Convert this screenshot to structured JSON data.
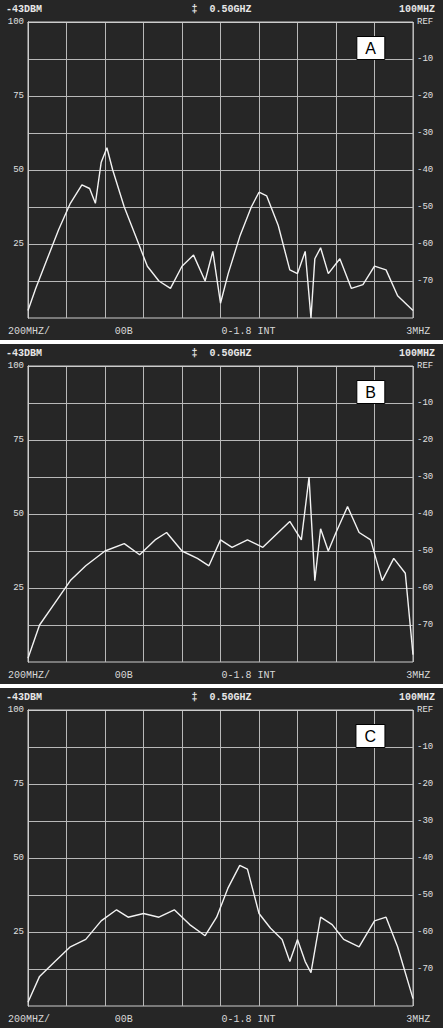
{
  "chart_data": [
    {
      "type": "line",
      "title": "A",
      "header": [
        "-43DBM",
        "‡",
        "0.50GHZ",
        "100MHZ"
      ],
      "footer": [
        "200MHZ/",
        "00B",
        "0-1.8 INT",
        "3MHZ"
      ],
      "x": [
        0,
        0.2,
        0.5,
        0.8,
        1.1,
        1.4,
        1.6,
        1.75,
        1.9,
        2.05,
        2.2,
        2.5,
        2.8,
        3.1,
        3.4,
        3.7,
        4.0,
        4.3,
        4.6,
        4.8,
        5.0,
        5.2,
        5.5,
        5.8,
        6.0,
        6.2,
        6.5,
        6.8,
        7.0,
        7.2,
        7.35,
        7.45,
        7.6,
        7.8,
        8.1,
        8.4,
        8.7,
        9.0,
        9.3,
        9.6,
        10
      ],
      "values": [
        -78,
        -72,
        -64,
        -56,
        -49,
        -44,
        -45,
        -49,
        -38,
        -34,
        -40,
        -50,
        -58,
        -66,
        -70,
        -72,
        -66,
        -63,
        -70,
        -62,
        -76,
        -68,
        -58,
        -50,
        -46,
        -47,
        -55,
        -67,
        -68,
        -62,
        -80,
        -64,
        -61,
        -68,
        -64,
        -72,
        -71,
        -66,
        -67,
        -74,
        -78
      ],
      "color": "#f2f2f2",
      "xlim": [
        0,
        10
      ],
      "xticks": [
        0,
        1,
        2,
        3,
        4,
        5,
        6,
        7,
        8,
        9,
        10
      ],
      "ylim": [
        -80,
        0
      ],
      "yticks": [
        {
          "value": 0,
          "label": "REF"
        },
        -10,
        -20,
        -30,
        -40,
        -50,
        -60,
        -70
      ],
      "y2lim": [
        0,
        100
      ],
      "y2ticks": [
        25,
        50,
        75,
        100
      ],
      "grid": true,
      "tick_labels": "y"
    },
    {
      "type": "line",
      "title": "B",
      "header": [
        "-43DBM",
        "‡",
        "0.50GHZ",
        "100MHZ"
      ],
      "footer": [
        "200MHZ/",
        "00B",
        "0-1.8 INT",
        "3MHZ"
      ],
      "x": [
        0,
        0.3,
        0.7,
        1.1,
        1.5,
        2.0,
        2.5,
        2.9,
        3.3,
        3.6,
        4.0,
        4.4,
        4.7,
        5.0,
        5.3,
        5.7,
        6.1,
        6.5,
        6.8,
        7.1,
        7.3,
        7.45,
        7.6,
        7.8,
        8.0,
        8.3,
        8.6,
        8.9,
        9.2,
        9.5,
        9.8,
        10
      ],
      "values": [
        -79,
        -70,
        -64,
        -58,
        -54,
        -50,
        -48,
        -51,
        -47,
        -45,
        -50,
        -52,
        -54,
        -47,
        -49,
        -47,
        -49,
        -45,
        -42,
        -47,
        -30,
        -58,
        -44,
        -50,
        -45,
        -38,
        -45,
        -47,
        -58,
        -52,
        -56,
        -78
      ],
      "color": "#f2f2f2",
      "xlim": [
        0,
        10
      ],
      "xticks": [
        0,
        1,
        2,
        3,
        4,
        5,
        6,
        7,
        8,
        9,
        10
      ],
      "ylim": [
        -80,
        0
      ],
      "yticks": [
        {
          "value": 0,
          "label": "REF"
        },
        -10,
        -20,
        -30,
        -40,
        -50,
        -60,
        -70
      ],
      "y2lim": [
        0,
        100
      ],
      "y2ticks": [
        25,
        50,
        75,
        100
      ],
      "grid": true,
      "tick_labels": "y"
    },
    {
      "type": "line",
      "title": "C",
      "header": [
        "-43DBM",
        "‡",
        "0.50GHZ",
        "100MHZ"
      ],
      "footer": [
        "200MHZ/",
        "00B",
        "0-1.8 INT",
        "3MHZ"
      ],
      "x": [
        0,
        0.3,
        0.7,
        1.1,
        1.5,
        1.9,
        2.3,
        2.6,
        3.0,
        3.4,
        3.8,
        4.2,
        4.6,
        4.9,
        5.2,
        5.5,
        5.7,
        6.0,
        6.3,
        6.6,
        6.8,
        7.0,
        7.2,
        7.35,
        7.6,
        7.9,
        8.2,
        8.6,
        9.0,
        9.3,
        9.6,
        10
      ],
      "values": [
        -79,
        -72,
        -68,
        -64,
        -62,
        -57,
        -54,
        -56,
        -55,
        -56,
        -54,
        -58,
        -61,
        -56,
        -48,
        -42,
        -43,
        -55,
        -59,
        -62,
        -68,
        -62,
        -68,
        -71,
        -56,
        -58,
        -62,
        -64,
        -57,
        -56,
        -64,
        -78
      ],
      "color": "#f2f2f2",
      "xlim": [
        0,
        10
      ],
      "xticks": [
        0,
        1,
        2,
        3,
        4,
        5,
        6,
        7,
        8,
        9,
        10
      ],
      "ylim": [
        -80,
        0
      ],
      "yticks": [
        {
          "value": 0,
          "label": "REF"
        },
        -10,
        -20,
        -30,
        -40,
        -50,
        -60,
        -70
      ],
      "y2lim": [
        0,
        100
      ],
      "y2ticks": [
        25,
        50,
        75,
        100
      ],
      "grid": true,
      "tick_labels": "y"
    }
  ]
}
